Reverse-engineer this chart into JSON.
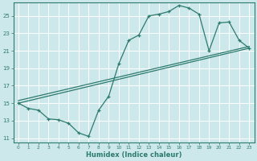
{
  "xlabel": "Humidex (Indice chaleur)",
  "xlim": [
    -0.5,
    23.5
  ],
  "ylim": [
    10.5,
    26.5
  ],
  "xticks": [
    0,
    1,
    2,
    3,
    4,
    5,
    6,
    7,
    8,
    9,
    10,
    11,
    12,
    13,
    14,
    15,
    16,
    17,
    18,
    19,
    20,
    21,
    22,
    23
  ],
  "yticks": [
    11,
    13,
    15,
    17,
    19,
    21,
    23,
    25
  ],
  "bg_color": "#cce8ea",
  "grid_color": "#ffffff",
  "line_color": "#2d7a6e",
  "line1_x": [
    0,
    1,
    2,
    3,
    4,
    5,
    6,
    7,
    8,
    9,
    10,
    11,
    12,
    13,
    14,
    15,
    16,
    17,
    18,
    19,
    20,
    21,
    22,
    23
  ],
  "line1_y": [
    15.0,
    14.4,
    14.2,
    13.2,
    13.1,
    12.7,
    11.6,
    11.2,
    14.2,
    15.8,
    19.5,
    22.2,
    22.8,
    25.0,
    25.2,
    25.5,
    26.2,
    25.9,
    25.2,
    21.0,
    24.2,
    24.3,
    22.2,
    21.3
  ],
  "line2_x": [
    0,
    23
  ],
  "line2_y": [
    15.0,
    21.3
  ],
  "line3_x": [
    0,
    23
  ],
  "line3_y": [
    15.3,
    21.5
  ]
}
